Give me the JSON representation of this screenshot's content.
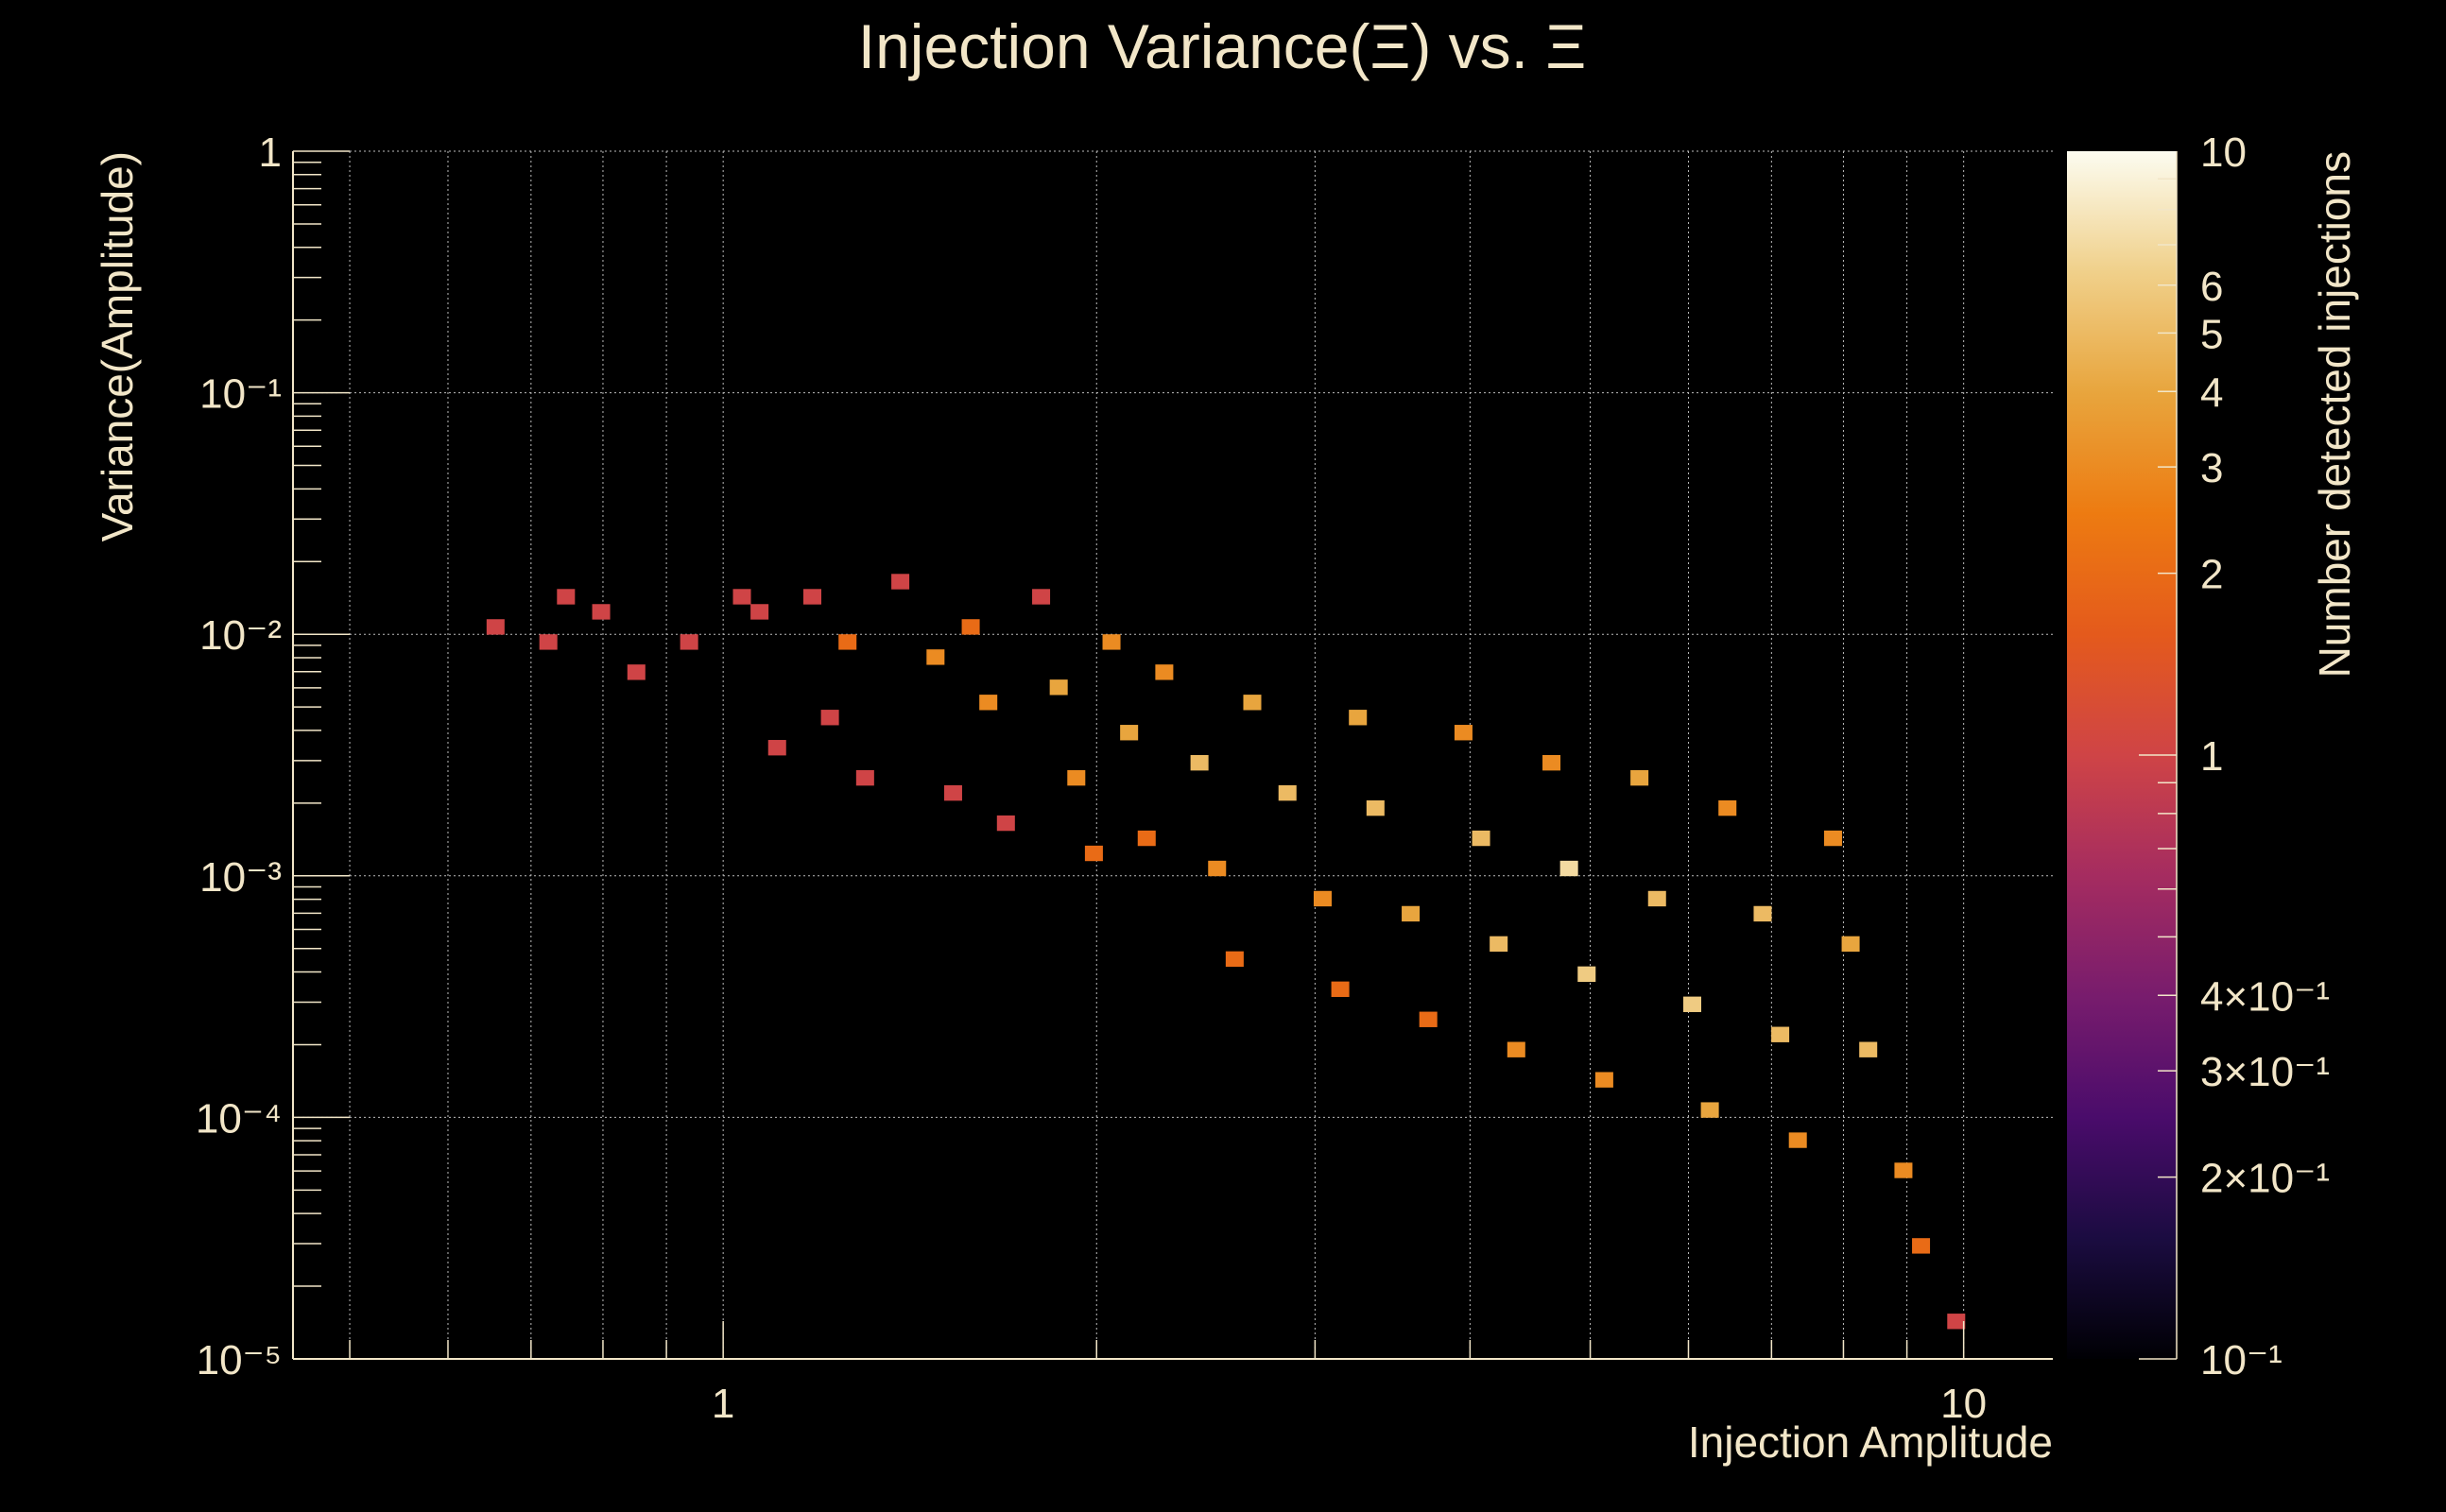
{
  "chart_data": {
    "type": "heatmap",
    "title": "Injection Variance(Ξ) vs. Ξ",
    "xlabel": "Injection Amplitude",
    "ylabel": "Variance(Amplitude)",
    "zlabel": "Number detected injections",
    "x_scale": "log",
    "y_scale": "log",
    "z_scale": "log",
    "xlim": [
      0.45,
      11.8
    ],
    "ylim": [
      1e-05,
      1
    ],
    "zlim": [
      0.1,
      10
    ],
    "grid": true,
    "x_ticks": [
      {
        "value": 1,
        "label": "1"
      },
      {
        "value": 10,
        "label": "10"
      }
    ],
    "y_ticks": [
      {
        "value": 1,
        "label": "1"
      },
      {
        "value": 0.1,
        "label": "10⁻¹"
      },
      {
        "value": 0.01,
        "label": "10⁻²"
      },
      {
        "value": 0.001,
        "label": "10⁻³"
      },
      {
        "value": 0.0001,
        "label": "10⁻⁴"
      },
      {
        "value": 1e-05,
        "label": "10⁻⁵"
      }
    ],
    "z_ticks": [
      {
        "value": 10,
        "label": "10"
      },
      {
        "value": 6,
        "label": "6"
      },
      {
        "value": 5,
        "label": "5"
      },
      {
        "value": 4,
        "label": "4"
      },
      {
        "value": 3,
        "label": "3"
      },
      {
        "value": 2,
        "label": "2"
      },
      {
        "value": 1,
        "label": "1"
      },
      {
        "value": 0.4,
        "label": "4×10⁻¹"
      },
      {
        "value": 0.3,
        "label": "3×10⁻¹"
      },
      {
        "value": 0.2,
        "label": "2×10⁻¹"
      },
      {
        "value": 0.1,
        "label": "10⁻¹"
      }
    ],
    "colormap_hex": [
      "#000004",
      "#1b0c41",
      "#4a0c6b",
      "#781c6d",
      "#a52c60",
      "#cf4446",
      "#e45a1c",
      "#ed7b11",
      "#e8a53d",
      "#f0d08a",
      "#fcfcf0"
    ],
    "bins": {
      "x_bins": 100,
      "y_bins": 80,
      "description": "count per (log10 amplitude, log10 variance) bin",
      "cells": [
        [
          0.66,
          0.0105,
          1
        ],
        [
          0.74,
          0.0135,
          1
        ],
        [
          0.8,
          0.012,
          1
        ],
        [
          0.72,
          0.0093,
          1
        ],
        [
          0.86,
          0.0068,
          1
        ],
        [
          0.93,
          0.0093,
          1
        ],
        [
          1.02,
          0.0135,
          1
        ],
        [
          1.08,
          0.012,
          1
        ],
        [
          1.12,
          0.0032,
          1
        ],
        [
          1.18,
          0.0145,
          1
        ],
        [
          1.22,
          0.0044,
          1
        ],
        [
          1.26,
          0.009,
          2
        ],
        [
          1.32,
          0.0027,
          1
        ],
        [
          1.4,
          0.0155,
          1
        ],
        [
          1.46,
          0.0078,
          3
        ],
        [
          1.52,
          0.0021,
          1
        ],
        [
          1.58,
          0.0115,
          2
        ],
        [
          1.64,
          0.005,
          3
        ],
        [
          1.7,
          0.0016,
          1
        ],
        [
          1.78,
          0.014,
          1
        ],
        [
          1.85,
          0.006,
          4
        ],
        [
          1.9,
          0.0025,
          3
        ],
        [
          1.96,
          0.0012,
          2
        ],
        [
          2.05,
          0.009,
          3
        ],
        [
          2.12,
          0.0038,
          4
        ],
        [
          2.2,
          0.0015,
          2
        ],
        [
          2.3,
          0.007,
          3
        ],
        [
          2.4,
          0.0029,
          5
        ],
        [
          2.5,
          0.0011,
          3
        ],
        [
          2.6,
          0.00045,
          2
        ],
        [
          2.7,
          0.0055,
          4
        ],
        [
          2.85,
          0.0022,
          5
        ],
        [
          3.0,
          0.00085,
          3
        ],
        [
          3.1,
          0.00032,
          2
        ],
        [
          3.25,
          0.0048,
          4
        ],
        [
          3.4,
          0.0018,
          5
        ],
        [
          3.55,
          0.00065,
          4
        ],
        [
          3.7,
          0.00024,
          2
        ],
        [
          3.9,
          0.004,
          3
        ],
        [
          4.05,
          0.0014,
          5
        ],
        [
          4.2,
          0.00052,
          5
        ],
        [
          4.4,
          0.00018,
          3
        ],
        [
          4.6,
          0.003,
          3
        ],
        [
          4.8,
          0.0011,
          7
        ],
        [
          5.0,
          0.0004,
          6
        ],
        [
          5.2,
          0.00014,
          3
        ],
        [
          5.45,
          0.0024,
          4
        ],
        [
          5.7,
          0.00085,
          5
        ],
        [
          5.95,
          0.00031,
          6
        ],
        [
          6.2,
          0.00011,
          4
        ],
        [
          6.5,
          0.0019,
          3
        ],
        [
          6.8,
          0.00065,
          5
        ],
        [
          7.1,
          0.00023,
          5
        ],
        [
          7.4,
          8e-05,
          3
        ],
        [
          7.75,
          0.0014,
          3
        ],
        [
          8.1,
          0.0005,
          4
        ],
        [
          8.5,
          0.00018,
          5
        ],
        [
          8.9,
          6e-05,
          3
        ],
        [
          9.3,
          3e-05,
          2
        ],
        [
          9.7,
          1.4e-05,
          1
        ]
      ]
    }
  }
}
